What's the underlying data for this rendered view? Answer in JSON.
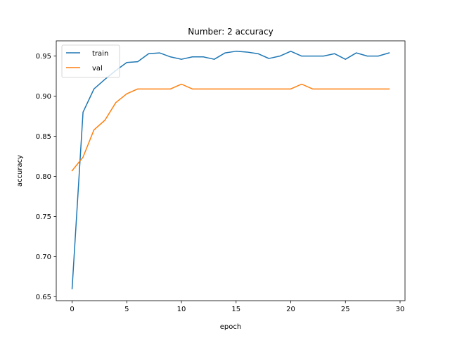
{
  "chart_data": {
    "type": "line",
    "title": "Number: 2 accuracy",
    "xlabel": "epoch",
    "ylabel": "accuracy",
    "xlim": [
      -1.45,
      30.45
    ],
    "ylim": [
      0.645,
      0.969
    ],
    "xticks": [
      0,
      5,
      10,
      15,
      20,
      25,
      30
    ],
    "xtick_labels": [
      "0",
      "5",
      "10",
      "15",
      "20",
      "25",
      "30"
    ],
    "yticks": [
      0.65,
      0.7,
      0.75,
      0.8,
      0.85,
      0.9,
      0.95
    ],
    "ytick_labels": [
      "0.65",
      "0.70",
      "0.75",
      "0.80",
      "0.85",
      "0.90",
      "0.95"
    ],
    "grid": false,
    "legend_position": "top-left",
    "x": [
      0,
      1,
      2,
      3,
      4,
      5,
      6,
      7,
      8,
      9,
      10,
      11,
      12,
      13,
      14,
      15,
      16,
      17,
      18,
      19,
      20,
      21,
      22,
      23,
      24,
      25,
      26,
      27,
      28,
      29
    ],
    "series": [
      {
        "name": "train",
        "color": "#1f77b4",
        "values": [
          0.66,
          0.88,
          0.909,
          0.921,
          0.932,
          0.942,
          0.943,
          0.953,
          0.954,
          0.949,
          0.946,
          0.949,
          0.949,
          0.946,
          0.954,
          0.956,
          0.955,
          0.953,
          0.947,
          0.95,
          0.956,
          0.95,
          0.95,
          0.95,
          0.953,
          0.946,
          0.954,
          0.95,
          0.95,
          0.954
        ]
      },
      {
        "name": "val",
        "color": "#ff7f0e",
        "values": [
          0.807,
          0.824,
          0.858,
          0.87,
          0.892,
          0.903,
          0.909,
          0.909,
          0.909,
          0.909,
          0.915,
          0.909,
          0.909,
          0.909,
          0.909,
          0.909,
          0.909,
          0.909,
          0.909,
          0.909,
          0.909,
          0.915,
          0.909,
          0.909,
          0.909,
          0.909,
          0.909,
          0.909,
          0.909,
          0.909
        ]
      }
    ]
  }
}
